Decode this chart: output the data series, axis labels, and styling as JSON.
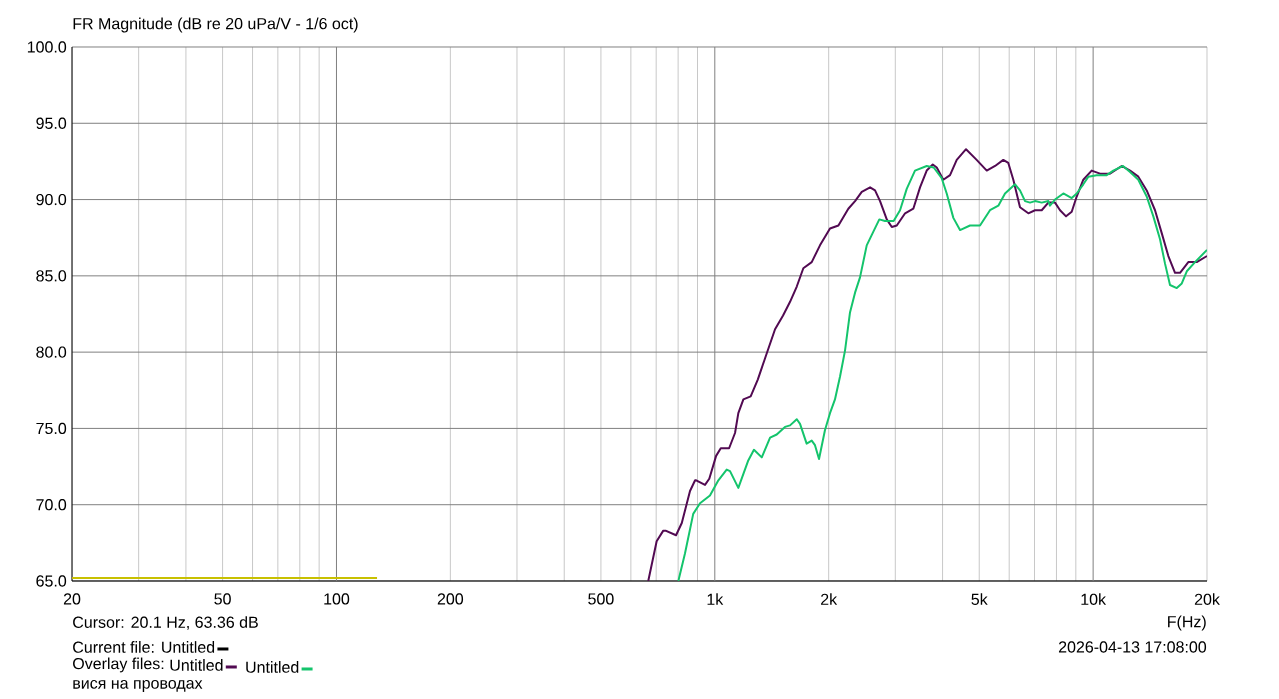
{
  "chart_data": {
    "type": "line",
    "title": "FR Magnitude (dB re 20 uPa/V - 1/6 oct)",
    "xlabel": "F(Hz)",
    "log": "x",
    "grid": true,
    "legend": "bottom",
    "legend_title": "Overlay files:",
    "xlim": [
      20,
      20000
    ],
    "ylim": [
      65,
      100
    ],
    "xticks": [
      20,
      {
        "value": 30,
        "label": null
      },
      {
        "value": 40,
        "label": null
      },
      50,
      {
        "value": 60,
        "label": null
      },
      {
        "value": 70,
        "label": null
      },
      {
        "value": 80,
        "label": null
      },
      {
        "value": 90,
        "label": null
      },
      100,
      200,
      {
        "value": 300,
        "label": null
      },
      {
        "value": 400,
        "label": null
      },
      500,
      {
        "value": 600,
        "label": null
      },
      {
        "value": 700,
        "label": null
      },
      {
        "value": 800,
        "label": null
      },
      {
        "value": 900,
        "label": null
      },
      {
        "value": 1000,
        "label": "1k"
      },
      {
        "value": 2000,
        "label": "2k"
      },
      {
        "value": 3000,
        "label": null
      },
      {
        "value": 4000,
        "label": null
      },
      {
        "value": 5000,
        "label": "5k"
      },
      {
        "value": 6000,
        "label": null
      },
      {
        "value": 7000,
        "label": null
      },
      {
        "value": 8000,
        "label": null
      },
      {
        "value": 9000,
        "label": null
      },
      {
        "value": 10000,
        "label": "10k"
      },
      {
        "value": 20000,
        "label": "20k"
      }
    ],
    "yticks": [
      {
        "value": 65,
        "label": "65.0"
      },
      {
        "value": 70,
        "label": "70.0"
      },
      {
        "value": 75,
        "label": "75.0"
      },
      {
        "value": 80,
        "label": "80.0"
      },
      {
        "value": 85,
        "label": "85.0"
      },
      {
        "value": 90,
        "label": "90.0"
      },
      {
        "value": 95,
        "label": "95.0"
      },
      {
        "value": 100,
        "label": "100.0"
      }
    ],
    "series": [
      {
        "color": "#c8c000",
        "x": [
          20,
          128
        ],
        "values": [
          65.2,
          65.2
        ]
      },
      {
        "name": "Untitled",
        "color": "#520a52",
        "x": [
          667,
          702,
          731,
          741,
          790,
          818,
          860,
          887,
          893,
          942,
          967,
          1008,
          1037,
          1091,
          1131,
          1154,
          1190,
          1244,
          1299,
          1358,
          1443,
          1515,
          1581,
          1647,
          1714,
          1804,
          1897,
          2016,
          2122,
          2254,
          2348,
          2446,
          2573,
          2652,
          2734,
          2848,
          2937,
          3027,
          3184,
          3348,
          3487,
          3632,
          3768,
          3861,
          4018,
          4186,
          4360,
          4614,
          4922,
          5234,
          5506,
          5788,
          5968,
          6153,
          6408,
          6742,
          7022,
          7314,
          7615,
          7931,
          8177,
          8481,
          8779,
          9049,
          9420,
          9912,
          10428,
          11081,
          11899,
          12520,
          13166,
          13856,
          14576,
          15182,
          15806,
          16462,
          16972,
          17850,
          18786,
          20000
        ],
        "values": [
          65.0,
          67.6,
          68.3,
          68.3,
          68.0,
          68.8,
          70.9,
          71.6,
          71.6,
          71.3,
          71.7,
          73.2,
          73.7,
          73.7,
          74.7,
          76.0,
          76.9,
          77.1,
          78.2,
          79.6,
          81.5,
          82.4,
          83.3,
          84.3,
          85.5,
          85.9,
          87.0,
          88.1,
          88.3,
          89.4,
          89.9,
          90.5,
          90.8,
          90.6,
          89.9,
          88.7,
          88.2,
          88.3,
          89.1,
          89.4,
          90.8,
          91.9,
          92.3,
          92.1,
          91.3,
          91.6,
          92.6,
          93.3,
          92.6,
          91.9,
          92.2,
          92.6,
          92.4,
          91.3,
          89.5,
          89.1,
          89.3,
          89.3,
          89.8,
          89.8,
          89.3,
          88.9,
          89.2,
          90.2,
          91.3,
          91.9,
          91.7,
          91.7,
          92.2,
          91.9,
          91.5,
          90.6,
          89.3,
          87.8,
          86.3,
          85.2,
          85.2,
          85.9,
          85.9,
          86.3
        ]
      },
      {
        "name": "Untitled",
        "color": "#14c46c",
        "x": [
          801,
          834,
          877,
          914,
          971,
          1022,
          1075,
          1097,
          1154,
          1226,
          1269,
          1331,
          1400,
          1458,
          1533,
          1581,
          1647,
          1680,
          1749,
          1804,
          1840,
          1886,
          1956,
          2016,
          2078,
          2143,
          2209,
          2277,
          2348,
          2420,
          2521,
          2625,
          2722,
          2818,
          2970,
          3088,
          3216,
          3382,
          3632,
          3790,
          3980,
          4102,
          4271,
          4448,
          4727,
          5024,
          5338,
          5616,
          5850,
          6218,
          6408,
          6608,
          6813,
          7022,
          7314,
          7615,
          7692,
          7931,
          8342,
          8779,
          9049,
          9420,
          9715,
          10218,
          10860,
          11309,
          11990,
          12520,
          13166,
          13856,
          14426,
          15026,
          15490,
          15968,
          16638,
          17154,
          17684,
          18593,
          20000
        ],
        "values": [
          65.0,
          66.8,
          69.4,
          70.1,
          70.6,
          71.6,
          72.3,
          72.2,
          71.1,
          72.9,
          73.6,
          73.1,
          74.4,
          74.6,
          75.1,
          75.2,
          75.6,
          75.3,
          74.0,
          74.2,
          73.9,
          73.0,
          74.9,
          76.0,
          76.9,
          78.4,
          80.1,
          82.6,
          83.9,
          84.9,
          87.0,
          87.9,
          88.7,
          88.6,
          88.6,
          89.3,
          90.7,
          91.9,
          92.2,
          92.1,
          91.4,
          90.4,
          88.8,
          88.0,
          88.3,
          88.3,
          89.3,
          89.6,
          90.4,
          91.0,
          90.6,
          89.9,
          89.8,
          89.9,
          89.8,
          89.9,
          89.6,
          90.0,
          90.4,
          90.1,
          90.4,
          91.0,
          91.5,
          91.6,
          91.6,
          91.9,
          92.2,
          91.8,
          91.3,
          90.2,
          88.9,
          87.4,
          85.8,
          84.4,
          84.2,
          84.5,
          85.3,
          85.9,
          86.7
        ]
      }
    ],
    "annotations": [
      "Cursor: 20.1 Hz, 63.36 dB",
      "Current file: Untitled",
      "2026-04-13  17:08:00",
      "вися на проводах"
    ]
  }
}
